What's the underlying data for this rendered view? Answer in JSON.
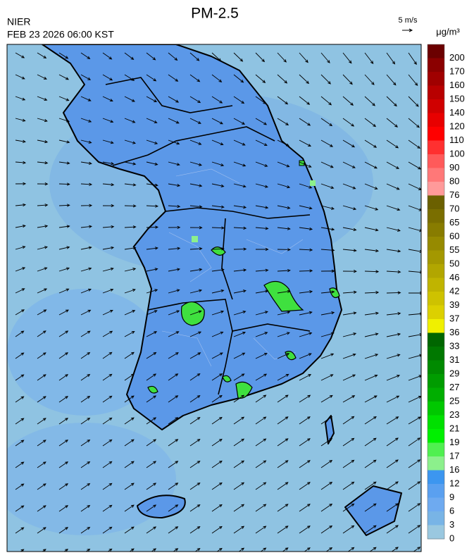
{
  "header": {
    "title": "PM-2.5",
    "agency": "NIER",
    "timestamp": "FEB 23 2026 06:00 KST",
    "wind_scale": "5 m/s"
  },
  "colorbar": {
    "unit": "μg/m³",
    "labels": [
      200,
      170,
      160,
      150,
      140,
      120,
      110,
      100,
      90,
      80,
      76,
      70,
      65,
      60,
      55,
      50,
      46,
      42,
      39,
      37,
      36,
      33,
      31,
      29,
      27,
      25,
      23,
      21,
      19,
      17,
      16,
      12,
      9,
      6,
      3,
      0
    ],
    "colors": [
      "#6b0000",
      "#8b0000",
      "#a00000",
      "#b80000",
      "#d00000",
      "#e80000",
      "#ff0000",
      "#ff3030",
      "#ff5a5a",
      "#ff7878",
      "#ff9a9a",
      "#6b6000",
      "#7a6e00",
      "#887c00",
      "#968a00",
      "#a49800",
      "#b2a600",
      "#c0b400",
      "#cec200",
      "#dcd000",
      "#f0f000",
      "#006600",
      "#007800",
      "#008a00",
      "#009c00",
      "#00ae00",
      "#00c800",
      "#00e000",
      "#00f000",
      "#50f050",
      "#8cf08c",
      "#3c96f0",
      "#5aa0f0",
      "#6eaaf0",
      "#78b4e6",
      "#9ac8e0"
    ]
  }
}
